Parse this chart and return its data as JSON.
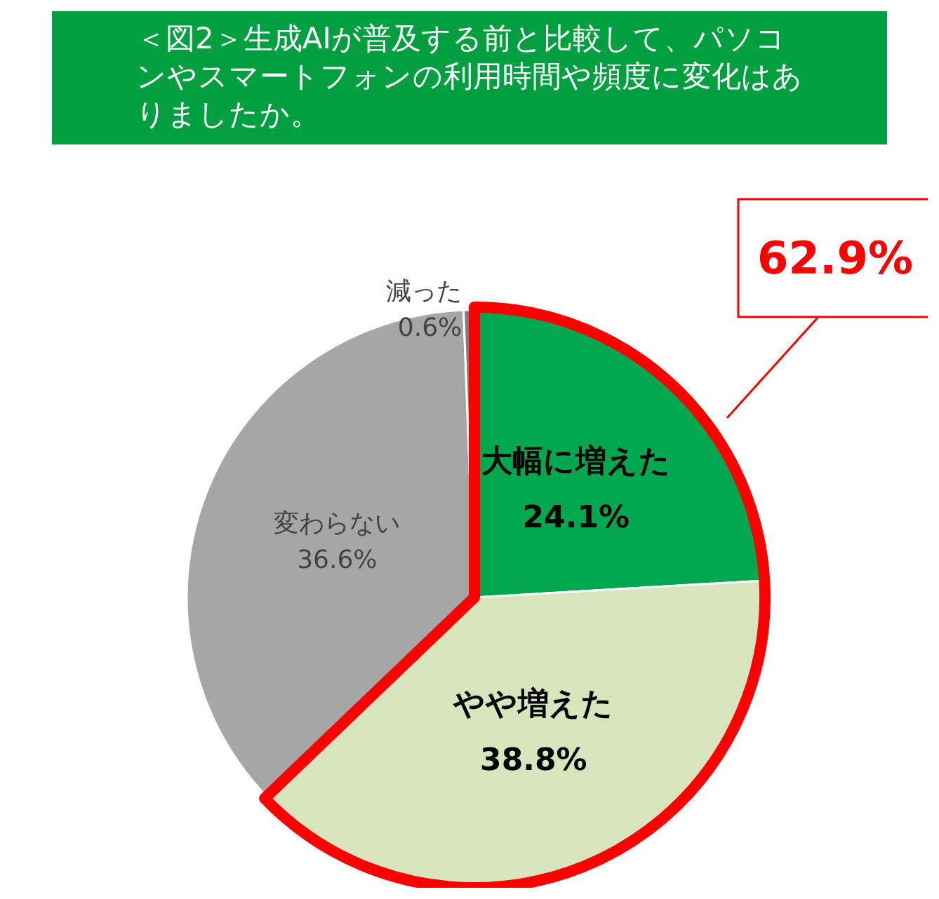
{
  "chart_data": {
    "type": "pie",
    "title": "＜図2＞生成AIが普及する前と比較して、パソコンやスマートフォンの利用時間や頻度に変化はありましたか。",
    "categories": [
      "大幅に増えた",
      "やや増えた",
      "変わらない",
      "減った"
    ],
    "values": [
      24.1,
      38.8,
      36.6,
      0.6
    ],
    "value_labels": [
      "24.1%",
      "38.8%",
      "36.6%",
      "0.6%"
    ],
    "colors": [
      "#00a84f",
      "#d8e4bc",
      "#a6a6a6",
      "#7f7f7f"
    ],
    "legend": false,
    "annotations": [
      "62.9%"
    ]
  }
}
